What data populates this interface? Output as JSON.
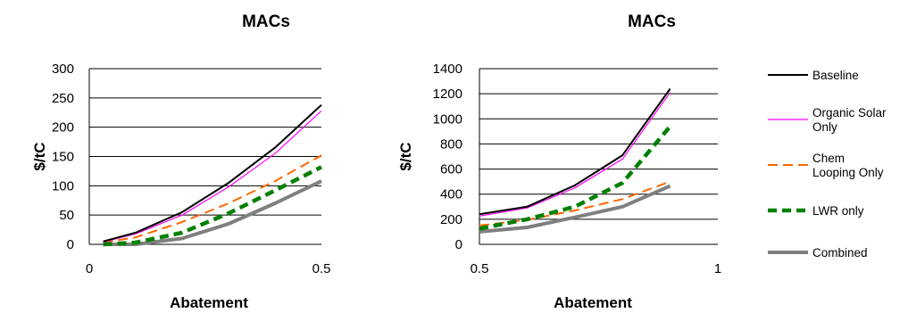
{
  "chart_data": [
    {
      "type": "line",
      "title": "MACs",
      "xlabel": "Abatement",
      "ylabel": "$/tC",
      "xlim": [
        0,
        0.5
      ],
      "ylim": [
        0,
        300
      ],
      "x_ticks": [
        "0",
        "0.5"
      ],
      "y_ticks": [
        "0",
        "50",
        "100",
        "150",
        "200",
        "250",
        "300"
      ],
      "grid": "horizontal",
      "x": [
        0.03,
        0.1,
        0.2,
        0.3,
        0.4,
        0.5
      ],
      "series": [
        {
          "name": "Baseline",
          "color": "#000000",
          "style": "solid",
          "values": [
            5,
            20,
            55,
            105,
            165,
            238
          ]
        },
        {
          "name": "Organic Solar Only",
          "color": "#ff00ff",
          "style": "solid",
          "values": [
            4,
            18,
            50,
            98,
            155,
            228
          ]
        },
        {
          "name": "Chem Looping Only",
          "color": "#ff6600",
          "style": "dashed",
          "values": [
            3,
            12,
            38,
            70,
            108,
            152
          ]
        },
        {
          "name": "LWR only",
          "color": "#008000",
          "style": "dashed",
          "values": [
            0,
            3,
            20,
            53,
            92,
            132
          ]
        },
        {
          "name": "Combined",
          "color": "#7f7f7f",
          "style": "solid",
          "values": [
            0,
            0,
            10,
            35,
            70,
            108
          ]
        }
      ]
    },
    {
      "type": "line",
      "title": "MACs",
      "xlabel": "Abatement",
      "ylabel": "$/tC",
      "xlim": [
        0.5,
        1
      ],
      "ylim": [
        0,
        1400
      ],
      "x_ticks": [
        "0.5",
        "1"
      ],
      "y_ticks": [
        "0",
        "200",
        "400",
        "600",
        "800",
        "1000",
        "1200",
        "1400"
      ],
      "grid": "horizontal",
      "x": [
        0.5,
        0.6,
        0.7,
        0.8,
        0.9
      ],
      "series": [
        {
          "name": "Baseline",
          "color": "#000000",
          "style": "solid",
          "values": [
            240,
            300,
            470,
            710,
            1240
          ]
        },
        {
          "name": "Organic Solar Only",
          "color": "#ff00ff",
          "style": "solid",
          "values": [
            225,
            290,
            450,
            680,
            1210
          ]
        },
        {
          "name": "Chem Looping Only",
          "color": "#ff6600",
          "style": "dashed",
          "values": [
            150,
            195,
            270,
            360,
            500
          ]
        },
        {
          "name": "LWR only",
          "color": "#008000",
          "style": "dashed",
          "values": [
            125,
            200,
            300,
            490,
            940
          ]
        },
        {
          "name": "Combined",
          "color": "#7f7f7f",
          "style": "solid",
          "values": [
            100,
            135,
            215,
            300,
            465
          ]
        }
      ]
    }
  ],
  "legend": {
    "placement": "right",
    "entries": [
      {
        "label_lines": [
          "Baseline"
        ]
      },
      {
        "label_lines": [
          "Organic Solar",
          "Only"
        ]
      },
      {
        "label_lines": [
          "Chem",
          "Looping Only"
        ]
      },
      {
        "label_lines": [
          "LWR only"
        ]
      },
      {
        "label_lines": [
          "Combined"
        ]
      }
    ]
  }
}
